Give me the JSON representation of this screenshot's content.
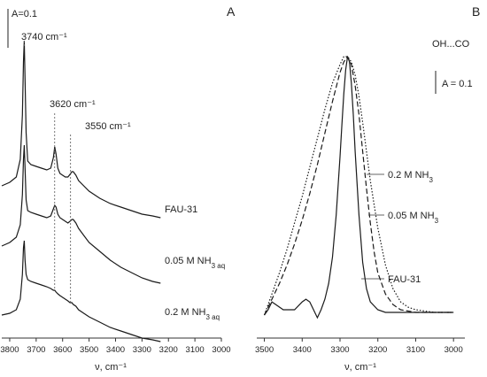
{
  "chart_data": [
    {
      "panel_label": "A",
      "type": "line",
      "xlabel": "ν, cm⁻¹",
      "xlim": [
        3830,
        3000
      ],
      "x_ticks": [
        3800,
        3700,
        3600,
        3500,
        3400,
        3300,
        3200,
        3100,
        3000
      ],
      "scale_bar": "A=0.1",
      "peak_labels": [
        {
          "text": "3740 cm⁻¹",
          "x": 3745
        },
        {
          "text": "3620 cm⁻¹",
          "x": 3630
        },
        {
          "text": "3550 cm⁻¹",
          "x": 3570
        }
      ],
      "series": [
        {
          "name": "FAU-31",
          "label_main": "FAU-31",
          "label_sub": "",
          "x": [
            3830,
            3800,
            3775,
            3760,
            3752,
            3748,
            3745,
            3742,
            3738,
            3732,
            3720,
            3700,
            3680,
            3660,
            3645,
            3635,
            3630,
            3625,
            3618,
            3610,
            3600,
            3590,
            3580,
            3572,
            3565,
            3560,
            3550,
            3540,
            3520,
            3500,
            3460,
            3420,
            3380,
            3340,
            3300,
            3260,
            3230
          ],
          "y": [
            0.0,
            0.02,
            0.05,
            0.15,
            0.4,
            0.7,
            0.82,
            0.6,
            0.3,
            0.14,
            0.12,
            0.11,
            0.1,
            0.09,
            0.1,
            0.16,
            0.22,
            0.18,
            0.1,
            0.07,
            0.06,
            0.05,
            0.05,
            0.065,
            0.08,
            0.08,
            0.06,
            0.03,
            0.0,
            -0.03,
            -0.07,
            -0.1,
            -0.12,
            -0.14,
            -0.16,
            -0.17,
            -0.18
          ]
        },
        {
          "name": "0.05 M NH3 aq",
          "label_main": "0.05 M NH",
          "label_sub": "3 aq",
          "x": [
            3830,
            3800,
            3775,
            3760,
            3752,
            3748,
            3745,
            3742,
            3738,
            3732,
            3720,
            3700,
            3680,
            3660,
            3645,
            3635,
            3630,
            3625,
            3618,
            3610,
            3600,
            3590,
            3580,
            3572,
            3565,
            3560,
            3550,
            3540,
            3520,
            3500,
            3460,
            3420,
            3380,
            3340,
            3300,
            3260,
            3230
          ],
          "y": [
            -0.34,
            -0.32,
            -0.29,
            -0.22,
            -0.05,
            0.15,
            0.23,
            0.1,
            -0.08,
            -0.14,
            -0.15,
            -0.16,
            -0.17,
            -0.18,
            -0.17,
            -0.13,
            -0.11,
            -0.12,
            -0.16,
            -0.18,
            -0.19,
            -0.2,
            -0.21,
            -0.2,
            -0.19,
            -0.19,
            -0.21,
            -0.24,
            -0.28,
            -0.32,
            -0.37,
            -0.42,
            -0.46,
            -0.49,
            -0.52,
            -0.54,
            -0.55
          ]
        },
        {
          "name": "0.2 M NH3 aq",
          "label_main": "0.2 M NH",
          "label_sub": "3 aq",
          "x": [
            3830,
            3800,
            3775,
            3760,
            3752,
            3748,
            3745,
            3742,
            3738,
            3732,
            3720,
            3700,
            3680,
            3660,
            3645,
            3635,
            3630,
            3625,
            3618,
            3610,
            3600,
            3590,
            3580,
            3572,
            3565,
            3560,
            3550,
            3540,
            3520,
            3500,
            3460,
            3420,
            3380,
            3340,
            3300,
            3260,
            3230
          ],
          "y": [
            -0.73,
            -0.72,
            -0.7,
            -0.64,
            -0.5,
            -0.35,
            -0.31,
            -0.42,
            -0.5,
            -0.53,
            -0.54,
            -0.55,
            -0.56,
            -0.57,
            -0.58,
            -0.59,
            -0.59,
            -0.6,
            -0.61,
            -0.62,
            -0.63,
            -0.64,
            -0.65,
            -0.66,
            -0.66,
            -0.67,
            -0.68,
            -0.7,
            -0.72,
            -0.74,
            -0.77,
            -0.8,
            -0.82,
            -0.84,
            -0.86,
            -0.87,
            -0.88
          ]
        }
      ]
    },
    {
      "panel_label": "B",
      "type": "line",
      "xlabel": "ν, cm⁻¹",
      "xlim": [
        3520,
        2970
      ],
      "x_ticks": [
        3500,
        3400,
        3300,
        3200,
        3100,
        3000
      ],
      "title": "OH...CO",
      "scale_bar": "A = 0.1",
      "series": [
        {
          "name": "FAU-31",
          "label_main": "FAU-31",
          "label_sub": "",
          "style": "solid",
          "x": [
            3500,
            3490,
            3480,
            3470,
            3450,
            3420,
            3400,
            3390,
            3380,
            3370,
            3360,
            3350,
            3340,
            3330,
            3320,
            3310,
            3300,
            3295,
            3290,
            3285,
            3280,
            3275,
            3270,
            3265,
            3260,
            3250,
            3240,
            3230,
            3220,
            3200,
            3180,
            3150,
            3100,
            3050,
            3000
          ],
          "y": [
            0.0,
            0.02,
            0.05,
            0.04,
            0.02,
            0.02,
            0.05,
            0.06,
            0.05,
            0.02,
            -0.01,
            0.02,
            0.06,
            0.12,
            0.22,
            0.38,
            0.6,
            0.72,
            0.84,
            0.93,
            0.98,
            0.96,
            0.88,
            0.76,
            0.62,
            0.38,
            0.2,
            0.1,
            0.05,
            0.02,
            0.01,
            0.01,
            0.01,
            0.01,
            0.01
          ]
        },
        {
          "name": "0.05 M NH3",
          "label_main": "0.05 M NH",
          "label_sub": "3",
          "style": "dashed",
          "x": [
            3500,
            3480,
            3460,
            3440,
            3420,
            3400,
            3380,
            3360,
            3340,
            3320,
            3300,
            3290,
            3280,
            3270,
            3260,
            3250,
            3240,
            3230,
            3220,
            3210,
            3200,
            3180,
            3160,
            3140,
            3120,
            3100,
            3050,
            3000
          ],
          "y": [
            0.0,
            0.06,
            0.12,
            0.19,
            0.27,
            0.36,
            0.46,
            0.57,
            0.69,
            0.81,
            0.92,
            0.96,
            0.98,
            0.95,
            0.87,
            0.76,
            0.62,
            0.48,
            0.35,
            0.24,
            0.16,
            0.08,
            0.04,
            0.02,
            0.015,
            0.01,
            0.01,
            0.01
          ]
        },
        {
          "name": "0.2 M NH3",
          "label_main": "0.2 M NH",
          "label_sub": "3",
          "style": "dotted",
          "x": [
            3500,
            3480,
            3460,
            3440,
            3420,
            3400,
            3380,
            3360,
            3340,
            3320,
            3300,
            3290,
            3280,
            3270,
            3260,
            3250,
            3240,
            3230,
            3220,
            3200,
            3180,
            3160,
            3140,
            3120,
            3100,
            3050,
            3000
          ],
          "y": [
            0.0,
            0.08,
            0.16,
            0.25,
            0.35,
            0.45,
            0.56,
            0.67,
            0.78,
            0.88,
            0.95,
            0.98,
            0.98,
            0.96,
            0.91,
            0.83,
            0.73,
            0.62,
            0.51,
            0.33,
            0.19,
            0.1,
            0.05,
            0.03,
            0.02,
            0.01,
            0.01
          ]
        }
      ]
    }
  ]
}
